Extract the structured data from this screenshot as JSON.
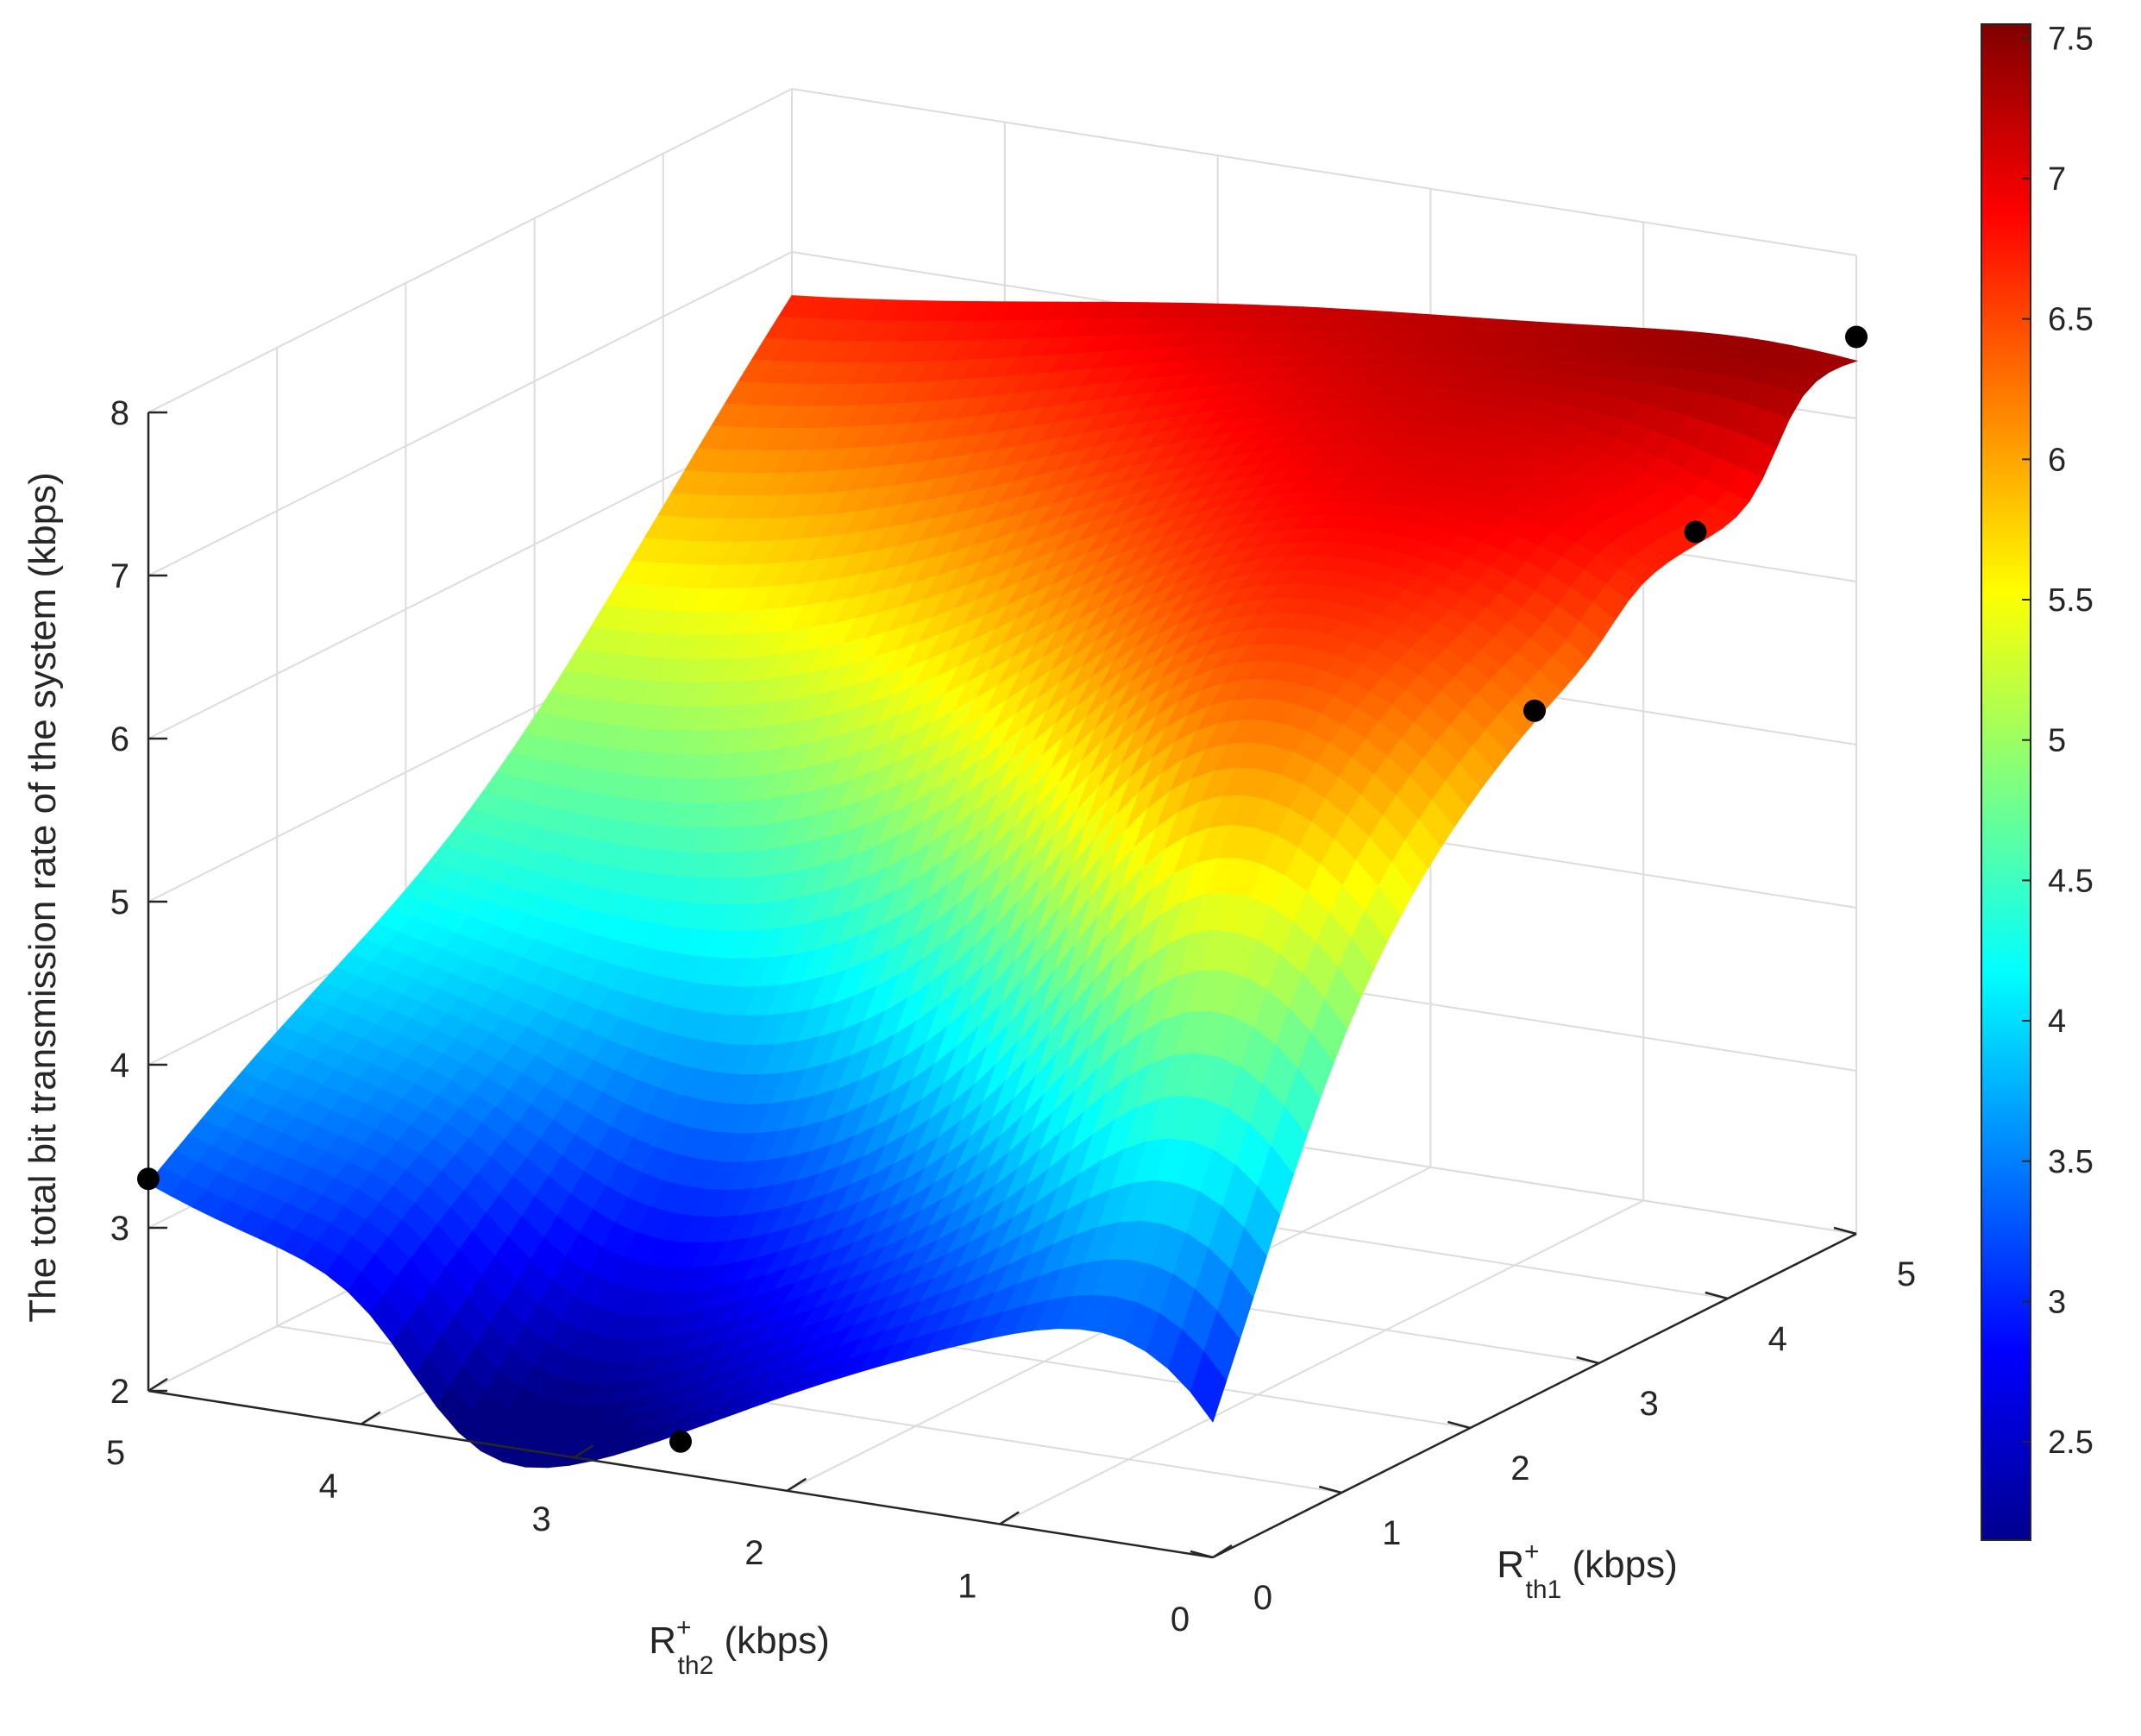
{
  "chart_data": {
    "type": "surface",
    "zlabel": "The total bit transmission rate of the system (kbps)",
    "xlabel": {
      "main": "R",
      "sup": "+",
      "sub": "th1",
      "unit": " (kbps)"
    },
    "ylabel": {
      "main": "R",
      "sup": "+",
      "sub": "th2",
      "unit": " (kbps)"
    },
    "x_axis": {
      "name": "Rth1",
      "range": [
        0,
        5
      ],
      "ticks": [
        "0",
        "1",
        "2",
        "3",
        "4",
        "5"
      ]
    },
    "y_axis": {
      "name": "Rth2",
      "range": [
        0,
        5
      ],
      "ticks": [
        "0",
        "1",
        "2",
        "3",
        "4",
        "5"
      ]
    },
    "z_axis": {
      "range": [
        2,
        8
      ],
      "ticks": [
        "2",
        "3",
        "4",
        "5",
        "6",
        "7",
        "8"
      ]
    },
    "grid": true,
    "colormap": "jet",
    "colorbar": {
      "position": "right",
      "range": [
        2.15,
        7.55
      ],
      "ticks": [
        "2.5",
        "3",
        "3.5",
        "4",
        "4.5",
        "5",
        "5.5",
        "6",
        "6.5",
        "7",
        "7.5"
      ]
    },
    "markers": [
      {
        "x": 0,
        "y": 5,
        "z": 3.3
      },
      {
        "x": 0,
        "y": 2.5,
        "z": 2.2
      },
      {
        "x": 2.5,
        "y": 0,
        "z": 6.2
      },
      {
        "x": 3.75,
        "y": 0,
        "z": 6.8
      },
      {
        "x": 5,
        "y": 0,
        "z": 7.5
      }
    ],
    "marker_color": "#000000"
  }
}
